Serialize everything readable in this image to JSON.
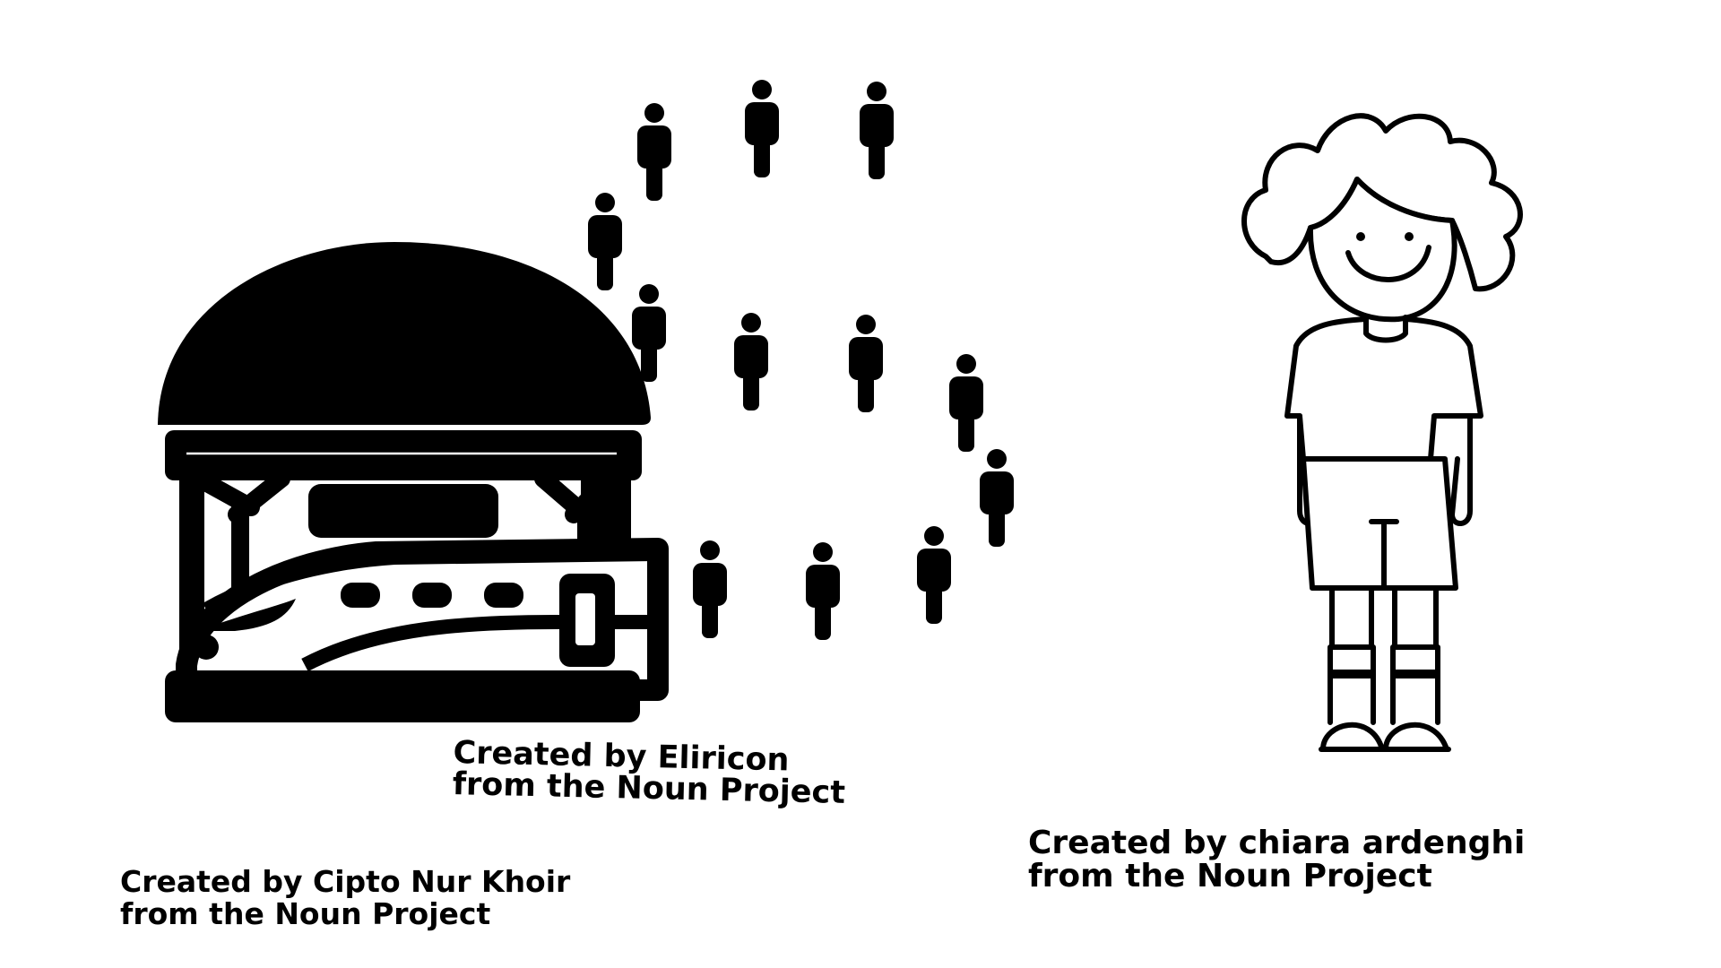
{
  "icons": {
    "train_station": "train-station-icon",
    "crowd_circle": "crowd-circle-icon",
    "child": "child-figure-icon"
  },
  "colors": {
    "ink": "#000000",
    "background": "#ffffff"
  },
  "credits": {
    "cipto": {
      "line1": "Created by Cipto Nur Khoir",
      "line2": "from the Noun Project"
    },
    "eliricon": {
      "line1": "Created by Eliricon",
      "line2": "from the Noun Project"
    },
    "chiara": {
      "line1": "Created by chiara ardenghi",
      "line2": "from the Noun Project"
    }
  }
}
